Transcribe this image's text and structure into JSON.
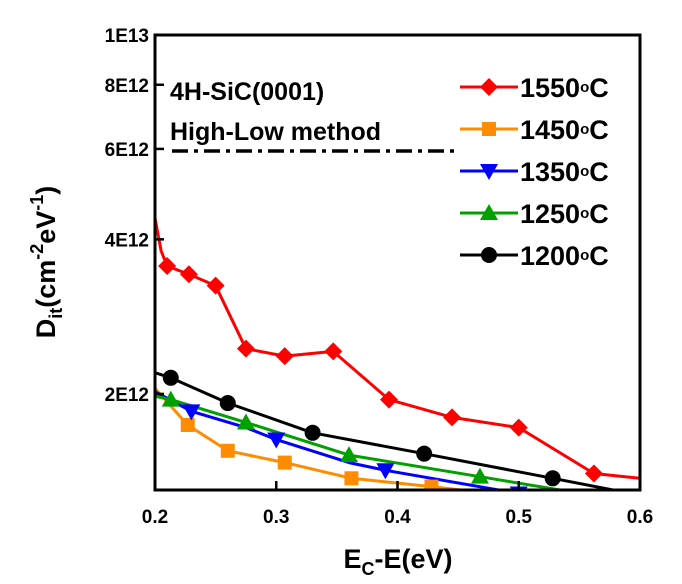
{
  "chart_data": {
    "type": "line",
    "y_scale": "log",
    "xlim": [
      0.2,
      0.6
    ],
    "ylim": [
      1300000000000.0,
      10000000000000.0
    ],
    "x_ticks": [
      {
        "value": 0.2,
        "label": "0.2"
      },
      {
        "value": 0.3,
        "label": "0.3"
      },
      {
        "value": 0.4,
        "label": "0.4"
      },
      {
        "value": 0.5,
        "label": "0.5"
      },
      {
        "value": 0.6,
        "label": "0.6"
      }
    ],
    "y_ticks": [
      {
        "value": 2000000000000.0,
        "label": "2E12"
      },
      {
        "value": 4000000000000.0,
        "label": "4E12"
      },
      {
        "value": 6000000000000.0,
        "label": "6E12"
      },
      {
        "value": 8000000000000.0,
        "label": "8E12"
      },
      {
        "value": 10000000000000.0,
        "label": "1E13"
      }
    ],
    "xlabel": {
      "main": "E",
      "sub": "C",
      "rest": "-E(eV)"
    },
    "ylabel": {
      "main": "D",
      "sub": "it",
      "rest1": "(cm",
      "sup1": "-2",
      "rest2": "eV",
      "sup2": "-1",
      "rest3": ")"
    },
    "annotations": {
      "material": "4H-SiC(0001)",
      "method": "High-Low method"
    },
    "legend_position": "top-right",
    "series": [
      {
        "name": "1550",
        "unit_deg": "o",
        "unit_c": "C",
        "color": "#ff0000",
        "marker": "diamond",
        "curve_x": [
          0.2,
          0.205,
          0.21,
          0.228,
          0.25,
          0.275,
          0.307,
          0.347,
          0.393,
          0.445,
          0.5,
          0.562,
          0.6
        ],
        "curve_y": [
          4400000000000.0,
          3800000000000.0,
          3550000000000.0,
          3420000000000.0,
          3250000000000.0,
          2450000000000.0,
          2370000000000.0,
          2420000000000.0,
          1950000000000.0,
          1800000000000.0,
          1720000000000.0,
          1400000000000.0,
          1370000000000.0
        ],
        "marker_x": [
          0.21,
          0.228,
          0.25,
          0.275,
          0.307,
          0.347,
          0.393,
          0.445,
          0.5,
          0.562
        ],
        "marker_y": [
          3550000000000.0,
          3420000000000.0,
          3250000000000.0,
          2450000000000.0,
          2370000000000.0,
          2420000000000.0,
          1950000000000.0,
          1800000000000.0,
          1720000000000.0,
          1400000000000.0
        ]
      },
      {
        "name": "1450",
        "unit_deg": "o",
        "unit_c": "C",
        "color": "#ff8c00",
        "marker": "square",
        "curve_x": [
          0.2,
          0.227,
          0.26,
          0.307,
          0.362,
          0.428,
          0.49
        ],
        "curve_y": [
          2050000000000.0,
          1740000000000.0,
          1550000000000.0,
          1470000000000.0,
          1370000000000.0,
          1320000000000.0,
          1270000000000.0
        ],
        "marker_x": [
          0.227,
          0.26,
          0.307,
          0.362,
          0.428
        ],
        "marker_y": [
          1740000000000.0,
          1550000000000.0,
          1470000000000.0,
          1370000000000.0,
          1320000000000.0
        ]
      },
      {
        "name": "1350",
        "unit_deg": "o",
        "unit_c": "C",
        "color": "#0000ff",
        "marker": "triangle-down",
        "curve_x": [
          0.2,
          0.23,
          0.275,
          0.3,
          0.36,
          0.39,
          0.5,
          0.51
        ],
        "curve_y": [
          2020000000000.0,
          1850000000000.0,
          1720000000000.0,
          1630000000000.0,
          1470000000000.0,
          1420000000000.0,
          1280000000000.0,
          1270000000000.0
        ],
        "marker_x": [
          0.23,
          0.3,
          0.39,
          0.5
        ],
        "marker_y": [
          1850000000000.0,
          1630000000000.0,
          1420000000000.0,
          1280000000000.0
        ]
      },
      {
        "name": "1250",
        "unit_deg": "o",
        "unit_c": "C",
        "color": "#00a000",
        "marker": "triangle-up",
        "curve_x": [
          0.2,
          0.213,
          0.275,
          0.36,
          0.468,
          0.56
        ],
        "curve_y": [
          1980000000000.0,
          1950000000000.0,
          1760000000000.0,
          1520000000000.0,
          1380000000000.0,
          1270000000000.0
        ],
        "marker_x": [
          0.213,
          0.275,
          0.36,
          0.468
        ],
        "marker_y": [
          1950000000000.0,
          1760000000000.0,
          1520000000000.0,
          1380000000000.0
        ]
      },
      {
        "name": "1200",
        "unit_deg": "o",
        "unit_c": "C",
        "color": "#000000",
        "marker": "circle",
        "curve_x": [
          0.2,
          0.213,
          0.26,
          0.33,
          0.422,
          0.528,
          0.6
        ],
        "curve_y": [
          2200000000000.0,
          2150000000000.0,
          1920000000000.0,
          1680000000000.0,
          1530000000000.0,
          1370000000000.0,
          1270000000000.0
        ],
        "marker_x": [
          0.213,
          0.26,
          0.33,
          0.422,
          0.528
        ],
        "marker_y": [
          2150000000000.0,
          1920000000000.0,
          1680000000000.0,
          1530000000000.0,
          1370000000000.0
        ]
      }
    ]
  }
}
